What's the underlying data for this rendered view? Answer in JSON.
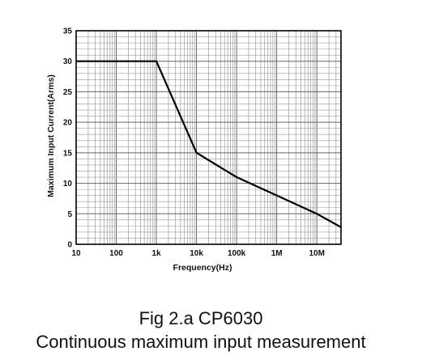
{
  "chart_data": {
    "type": "line",
    "x_scale": "log",
    "xlabel": "Frequency(Hz)",
    "ylabel": "Maximum Input Current(Arms)",
    "xlim": [
      10,
      40000000
    ],
    "ylim": [
      0,
      35
    ],
    "grid": true,
    "x_ticks": [
      {
        "value": 10,
        "label": "10"
      },
      {
        "value": 100,
        "label": "100"
      },
      {
        "value": 1000,
        "label": "1k"
      },
      {
        "value": 10000,
        "label": "10k"
      },
      {
        "value": 100000,
        "label": "100k"
      },
      {
        "value": 1000000,
        "label": "1M"
      },
      {
        "value": 10000000,
        "label": "10M"
      }
    ],
    "y_ticks": [
      0,
      5,
      10,
      15,
      20,
      25,
      30,
      35
    ],
    "series": [
      {
        "x": [
          10,
          1000,
          10000,
          100000,
          1000000,
          10000000,
          40000000
        ],
        "y": [
          30,
          30,
          15,
          11,
          8,
          5,
          2.8
        ],
        "color": "#000000"
      }
    ]
  },
  "caption": {
    "line1": "Fig 2.a CP6030",
    "line2": "Continuous maximum input measurement"
  }
}
